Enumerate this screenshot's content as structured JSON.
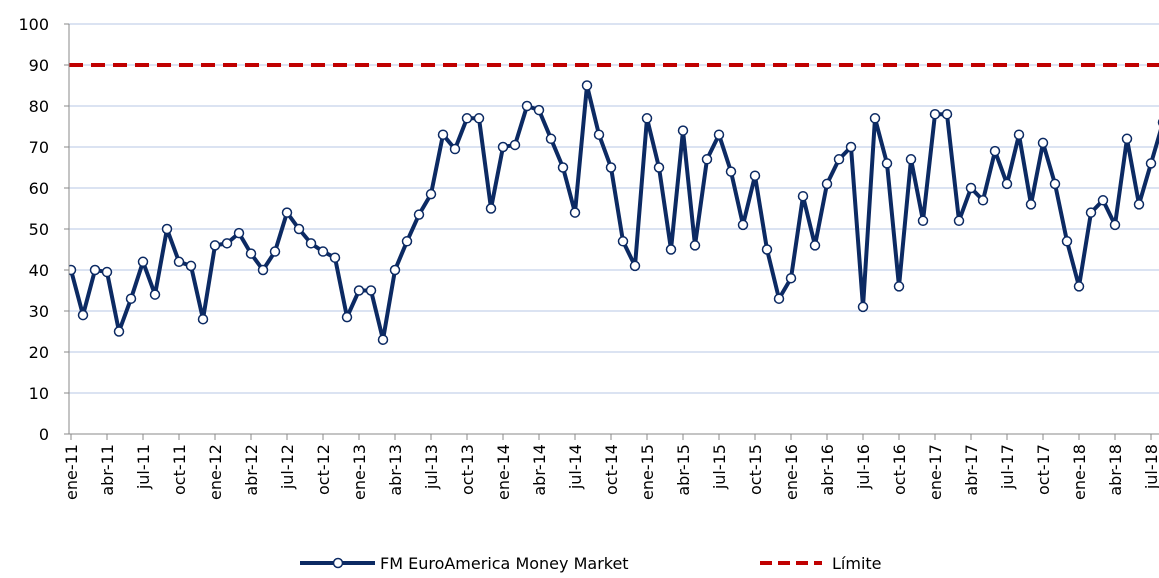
{
  "chart_data": {
    "type": "line",
    "categories": [
      "ene-11",
      null,
      null,
      "abr-11",
      null,
      null,
      "jul-11",
      null,
      null,
      "oct-11",
      null,
      null,
      "ene-12",
      null,
      null,
      "abr-12",
      null,
      null,
      "jul-12",
      null,
      null,
      "oct-12",
      null,
      null,
      "ene-13",
      null,
      null,
      "abr-13",
      null,
      null,
      "jul-13",
      null,
      null,
      "oct-13",
      null,
      null,
      "ene-14",
      null,
      null,
      "abr-14",
      null,
      null,
      "jul-14",
      null,
      null,
      "oct-14",
      null,
      null,
      "ene-15",
      null,
      null,
      "abr-15",
      null,
      null,
      "jul-15",
      null,
      null,
      "oct-15",
      null,
      null,
      "ene-16",
      null,
      null,
      "abr-16",
      null,
      null,
      "jul-16",
      null,
      null,
      "oct-16",
      null,
      null,
      "ene-17",
      null,
      null,
      "abr-17",
      null,
      null,
      "jul-17",
      null,
      null,
      "oct-17",
      null,
      null,
      "ene-18",
      null,
      null,
      "abr-18",
      null,
      null,
      "jul-18",
      null
    ],
    "series": [
      {
        "name": "FM EuroAmerica Money Market",
        "color": "#0c2a63",
        "values": [
          40,
          29,
          40,
          39.5,
          25,
          33,
          42,
          34,
          50,
          42,
          41,
          28,
          46,
          46.5,
          49,
          44,
          40,
          44.5,
          54,
          50,
          46.5,
          44.5,
          43,
          28.5,
          35,
          35,
          23,
          40,
          47,
          53.5,
          58.5,
          73,
          69.5,
          77,
          77,
          55,
          70,
          70.5,
          80,
          79,
          72,
          65,
          54,
          85,
          73,
          65,
          47,
          41,
          77,
          65,
          45,
          74,
          46,
          67,
          73,
          64,
          51,
          63,
          45,
          33,
          38,
          58,
          46,
          61,
          67,
          70,
          31,
          77,
          66,
          36,
          67,
          52,
          78,
          78,
          52,
          60,
          57,
          69,
          61,
          73,
          56,
          71,
          61,
          47,
          36,
          54,
          57,
          51,
          72,
          56,
          66,
          76
        ]
      }
    ],
    "reference_lines": [
      {
        "name": "Límite",
        "value": 90,
        "color": "#c00000"
      }
    ],
    "ylim": [
      0,
      100
    ],
    "yticks": [
      0,
      10,
      20,
      30,
      40,
      50,
      60,
      70,
      80,
      90,
      100
    ],
    "grid": true,
    "legend": "bottom"
  }
}
